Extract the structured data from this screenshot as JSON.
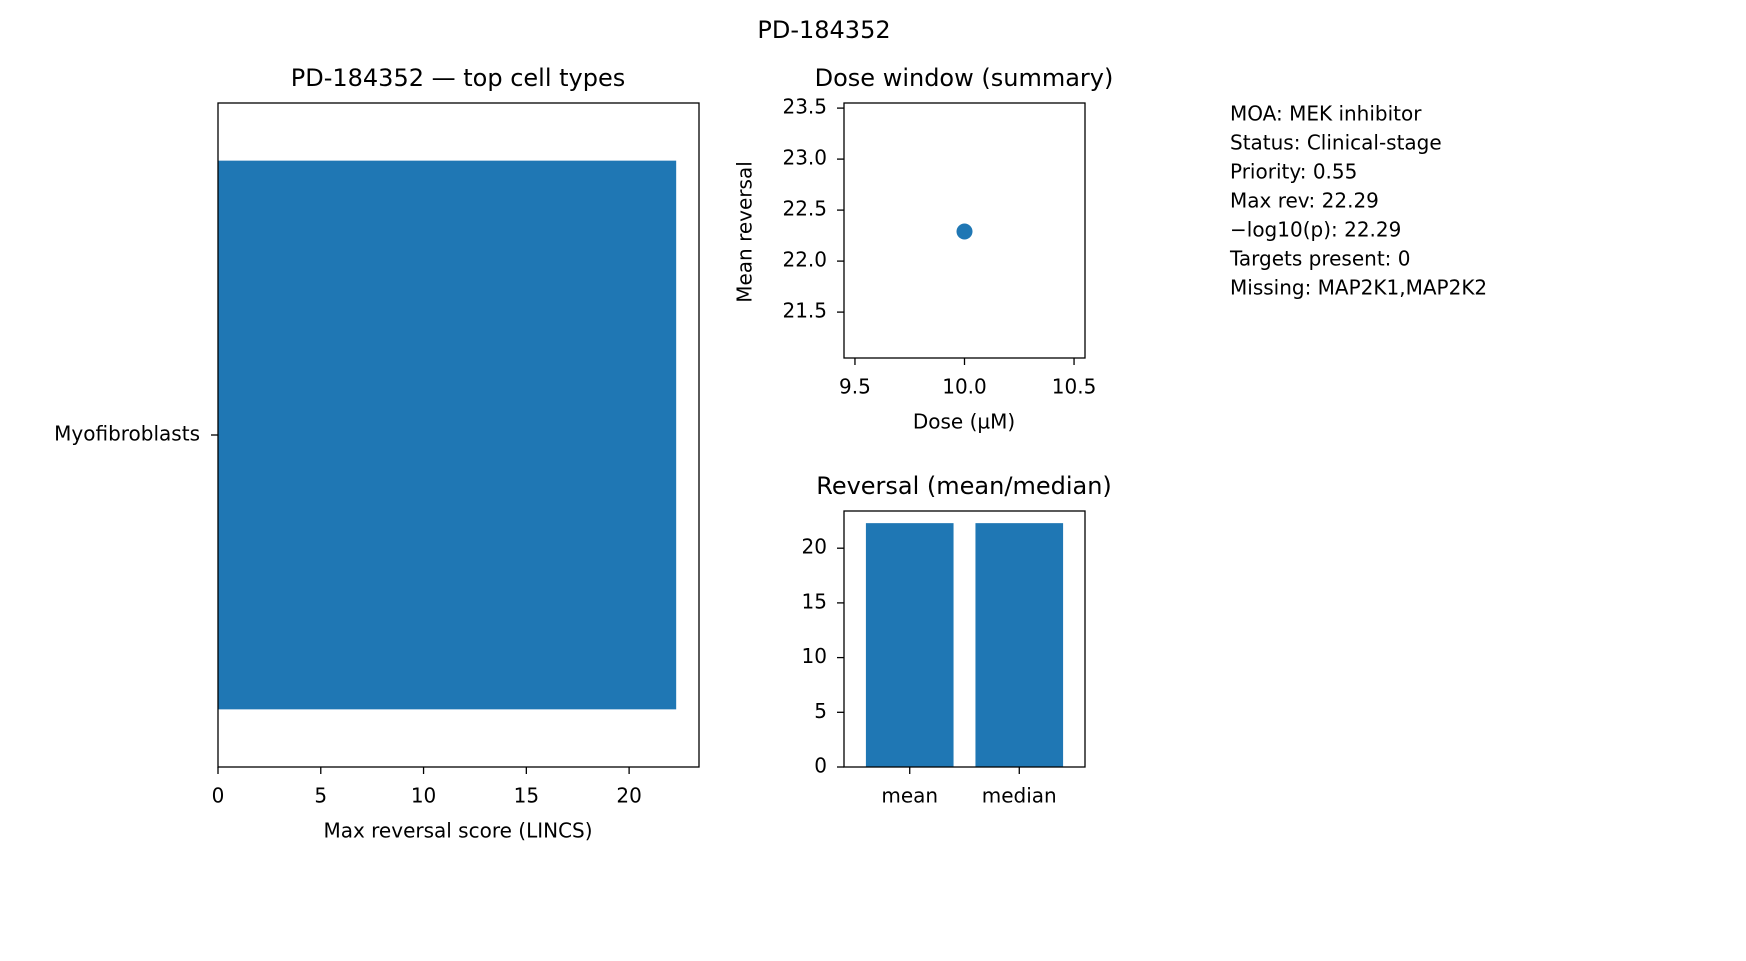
{
  "figure": {
    "suptitle": "PD-184352",
    "info_lines": [
      "MOA: MEK inhibitor",
      "Status: Clinical-stage",
      "Priority: 0.55",
      "Max rev: 22.29",
      "−log10(p): 22.29",
      "Targets present: 0",
      "Missing: MAP2K1,MAP2K2"
    ]
  },
  "chart_data": [
    {
      "type": "bar",
      "orientation": "horizontal",
      "title": "PD-184352 — top cell types",
      "xlabel": "Max reversal score (LINCS)",
      "ylabel": "",
      "categories": [
        "Myofibroblasts"
      ],
      "values": [
        22.29
      ],
      "xlim": [
        0,
        23.4
      ],
      "xticks": [
        0,
        5,
        10,
        15,
        20
      ],
      "grid": false,
      "color": "#1f77b4"
    },
    {
      "type": "scatter",
      "title": "Dose window (summary)",
      "xlabel": "Dose (µM)",
      "ylabel": "Mean reversal",
      "points": [
        {
          "x": 10.0,
          "y": 22.29
        }
      ],
      "xlim": [
        9.45,
        10.55
      ],
      "ylim": [
        21.05,
        23.55
      ],
      "xticks": [
        9.5,
        10.0,
        10.5
      ],
      "yticks": [
        21.5,
        22.0,
        22.5,
        23.0,
        23.5
      ],
      "grid": false,
      "color": "#1f77b4"
    },
    {
      "type": "bar",
      "title": "Reversal (mean/median)",
      "xlabel": "",
      "ylabel": "",
      "categories": [
        "mean",
        "median"
      ],
      "values": [
        22.29,
        22.29
      ],
      "ylim": [
        0,
        23.4
      ],
      "yticks": [
        0,
        5,
        10,
        15,
        20
      ],
      "grid": false,
      "color": "#1f77b4"
    }
  ]
}
